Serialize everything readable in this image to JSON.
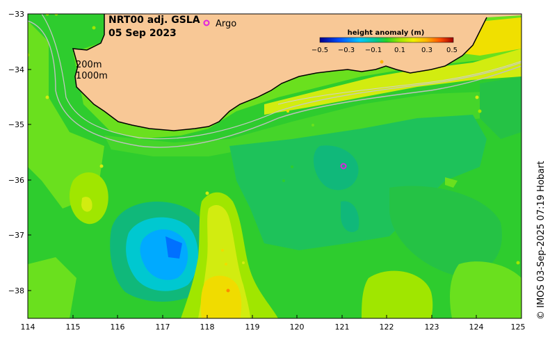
{
  "title": {
    "line1": "NRT00 adj. GSLA",
    "line2": "05 Sep 2023"
  },
  "argo_legend": {
    "symbol": "o",
    "label": "Argo",
    "color": "#e020e0"
  },
  "colorbar": {
    "title": "height anomaly (m)",
    "ticks": [
      "−0.5",
      "−0.3",
      "−0.1",
      "0.1",
      "0.3",
      "0.5"
    ]
  },
  "isobaths": {
    "shallow": "200m",
    "deep": "1000m"
  },
  "axes": {
    "x_ticks": [
      "114",
      "115",
      "116",
      "117",
      "118",
      "119",
      "120",
      "121",
      "122",
      "123",
      "124",
      "125"
    ],
    "y_ticks": [
      "−33",
      "−34",
      "−35",
      "−36",
      "−37",
      "−38"
    ]
  },
  "credit": "© IMOS 03-Sep-2025 07:19 Hobart",
  "colors": {
    "land": "#f8c896",
    "base_sea": "#2ecc2e",
    "argo": "#e020e0"
  }
}
